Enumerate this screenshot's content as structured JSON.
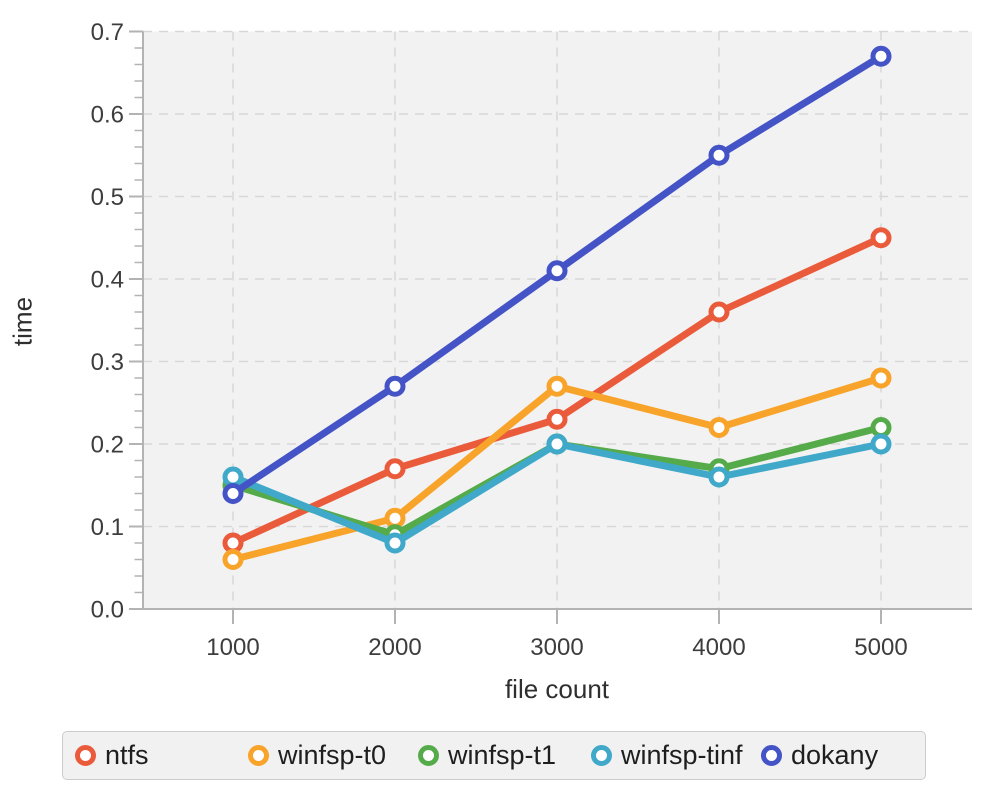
{
  "chart_data": {
    "type": "line",
    "title": "",
    "xlabel": "file count",
    "ylabel": "time",
    "x": [
      1000,
      2000,
      3000,
      4000,
      5000
    ],
    "x_tick_labels": [
      "1000",
      "2000",
      "3000",
      "4000",
      "5000"
    ],
    "y_tick_labels": [
      "0.0",
      "0.1",
      "0.2",
      "0.3",
      "0.4",
      "0.5",
      "0.6",
      "0.7"
    ],
    "ylim": [
      0,
      0.7
    ],
    "y_major_step": 0.1,
    "y_minor_step": 0.02,
    "grid": "dashed",
    "legend_position": "bottom",
    "marker": "open-circle",
    "series": [
      {
        "name": "ntfs",
        "color": "#EA5B3B",
        "values": [
          0.08,
          0.17,
          0.23,
          0.36,
          0.45
        ]
      },
      {
        "name": "winfsp-t0",
        "color": "#F8A32A",
        "values": [
          0.06,
          0.11,
          0.27,
          0.22,
          0.28
        ]
      },
      {
        "name": "winfsp-t1",
        "color": "#55AB4A",
        "values": [
          0.15,
          0.09,
          0.2,
          0.17,
          0.22
        ]
      },
      {
        "name": "winfsp-tinf",
        "color": "#40A8C9",
        "values": [
          0.16,
          0.08,
          0.2,
          0.16,
          0.2
        ]
      },
      {
        "name": "dokany",
        "color": "#4453C6",
        "values": [
          0.14,
          0.27,
          0.41,
          0.55,
          0.67
        ]
      }
    ],
    "plot_bg_color": "#f2f2f2",
    "gridline_color": "#d7d7d7",
    "axis_color": "#b3b3b3",
    "tick_label_color": "#3d3d3d"
  }
}
